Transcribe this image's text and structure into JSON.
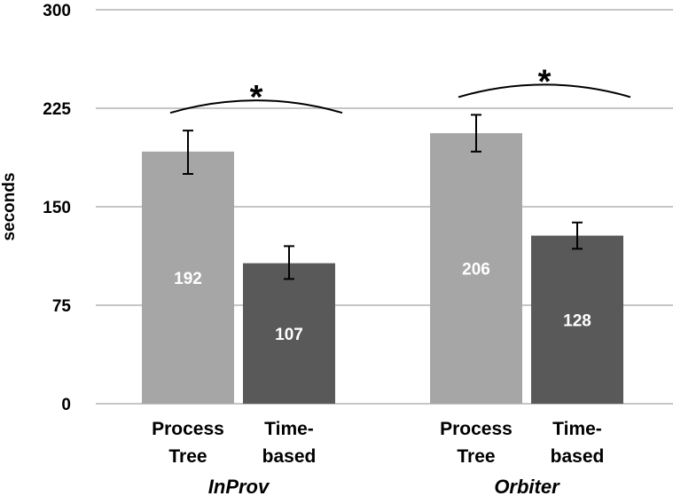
{
  "chart_data": {
    "type": "bar",
    "title": "",
    "xlabel": "",
    "ylabel": "seconds",
    "ylim": [
      0,
      300
    ],
    "yticks": [
      0,
      75,
      150,
      225,
      300
    ],
    "grid": true,
    "groups": [
      {
        "name": "InProv",
        "bars": [
          {
            "label_lines": [
              "Process",
              "Tree"
            ],
            "value": 192,
            "value_label": "192",
            "error_low": 175,
            "error_high": 208,
            "color": "#a6a6a6"
          },
          {
            "label_lines": [
              "Time-",
              "based"
            ],
            "value": 107,
            "value_label": "107",
            "error_low": 95,
            "error_high": 120,
            "color": "#595959"
          }
        ],
        "significance": "*"
      },
      {
        "name": "Orbiter",
        "bars": [
          {
            "label_lines": [
              "Process",
              "Tree"
            ],
            "value": 206,
            "value_label": "206",
            "error_low": 192,
            "error_high": 220,
            "color": "#a6a6a6"
          },
          {
            "label_lines": [
              "Time-",
              "based"
            ],
            "value": 128,
            "value_label": "128",
            "error_low": 118,
            "error_high": 138,
            "color": "#595959"
          }
        ],
        "significance": "*"
      }
    ]
  }
}
